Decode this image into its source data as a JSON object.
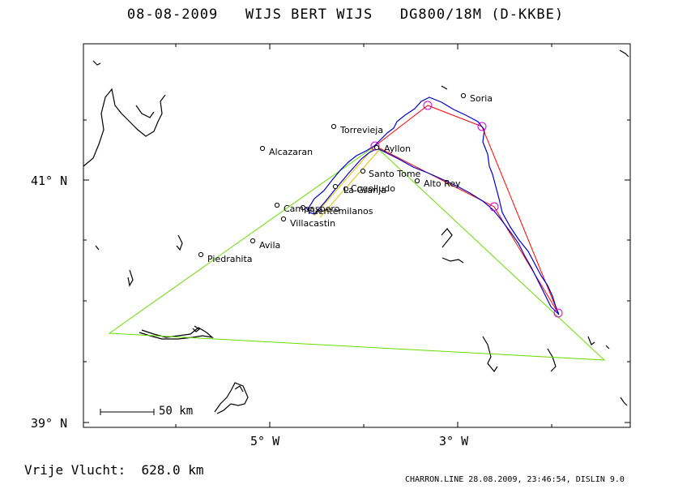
{
  "title": "08-08-2009   WIJS BERT WIJS   DG800/18M (D-KKBE)",
  "axes": {
    "lat_ticks": [
      {
        "text": "41° N",
        "key": "n41"
      },
      {
        "text": "39° N",
        "key": "n39"
      }
    ],
    "lon_ticks": [
      {
        "text": "5° W",
        "key": "w5"
      },
      {
        "text": "3° W",
        "key": "w3"
      }
    ]
  },
  "scale_bar": {
    "label": "50 km"
  },
  "distance_label": "Vrije Vlucht:  628.0 km",
  "footer": "CHARRON.LINE 28.08.2009, 23:46:54, DISLIN 9.0",
  "cities": [
    "Soria",
    "Torrevieja",
    "Ayllon",
    "Alcazaran",
    "Santo Tome",
    "Alto Rey",
    "Cogolludo",
    "La Granja",
    "Campaspero",
    "Villacastin",
    "Fuentemilanos",
    "Avila",
    "Piedrahita"
  ],
  "colors": {
    "track": "#0000cc",
    "task": "#ff0000",
    "triangle": "#66dd00",
    "turnpoint": "#cc00cc",
    "coast": "#000000"
  }
}
